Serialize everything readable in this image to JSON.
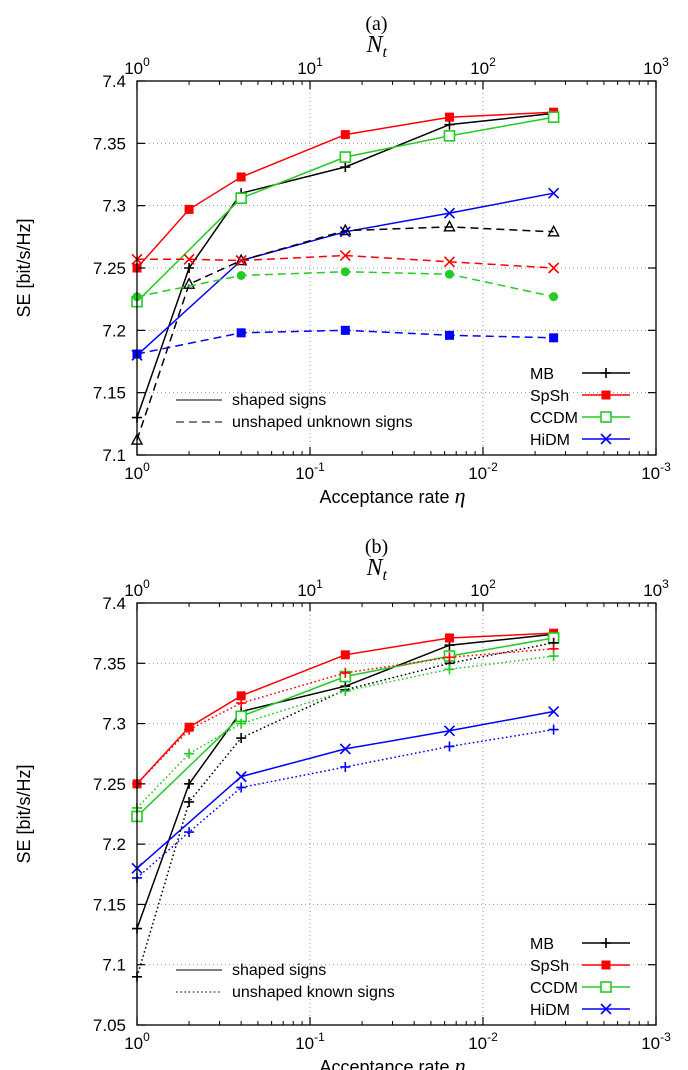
{
  "chart_data": [
    {
      "type": "line",
      "panel_label": "(a)",
      "top_axis_label": "N",
      "top_axis_label_sub": "t",
      "top_axis_ticks": [
        "10^0",
        "10^1",
        "10^2",
        "10^3"
      ],
      "xlabel": "Acceptance rate",
      "xlabel_symbol": "η",
      "ylabel": "SE [bit/s/Hz]",
      "x_scale": "log",
      "x_reversed": true,
      "xlim": [
        1,
        0.001
      ],
      "ylim": [
        7.1,
        7.4
      ],
      "x_ticks": [
        "10^0",
        "10^-1",
        "10^-2",
        "10^-3"
      ],
      "y_ticks": [
        "7.1",
        "7.15",
        "7.2",
        "7.25",
        "7.3",
        "7.35",
        "7.4"
      ],
      "grid": true,
      "legend_placement": "bottom-right",
      "style_legend": [
        {
          "label": "shaped signs",
          "dash": "solid"
        },
        {
          "label": "unshaped unknown signs",
          "dash": "dashed"
        }
      ],
      "series": [
        {
          "name": "MB",
          "color": "#000000",
          "marker": "plus",
          "dash": "solid",
          "x": [
            1,
            0.5,
            0.25,
            0.0625,
            0.015625,
            0.00390625
          ],
          "y": [
            7.13,
            7.25,
            7.31,
            7.331,
            7.365,
            7.374
          ]
        },
        {
          "name": "SpSh",
          "color": "#ff0000",
          "marker": "square-filled",
          "dash": "solid",
          "x": [
            1,
            0.5,
            0.25,
            0.0625,
            0.015625,
            0.00390625
          ],
          "y": [
            7.25,
            7.297,
            7.323,
            7.357,
            7.371,
            7.375
          ]
        },
        {
          "name": "CCDM",
          "color": "#22cc22",
          "marker": "square-open",
          "dash": "solid",
          "x": [
            1,
            0.25,
            0.0625,
            0.015625,
            0.00390625
          ],
          "y": [
            7.223,
            7.306,
            7.339,
            7.356,
            7.371
          ]
        },
        {
          "name": "HiDM",
          "color": "#0000ff",
          "marker": "cross",
          "dash": "solid",
          "x": [
            1,
            0.25,
            0.0625,
            0.015625,
            0.00390625
          ],
          "y": [
            7.18,
            7.256,
            7.279,
            7.294,
            7.31
          ]
        },
        {
          "color": "#000000",
          "marker": "triangle-open",
          "dash": "dashed",
          "x": [
            1,
            0.5,
            0.25,
            0.0625,
            0.015625,
            0.00390625
          ],
          "y": [
            7.112,
            7.237,
            7.256,
            7.28,
            7.283,
            7.279
          ]
        },
        {
          "color": "#ff0000",
          "marker": "cross",
          "dash": "dashed",
          "x": [
            1,
            0.5,
            0.25,
            0.0625,
            0.015625,
            0.00390625
          ],
          "y": [
            7.257,
            7.257,
            7.256,
            7.26,
            7.255,
            7.25
          ]
        },
        {
          "color": "#22cc22",
          "marker": "circle-filled",
          "dash": "dashed",
          "x": [
            1,
            0.25,
            0.0625,
            0.015625,
            0.00390625
          ],
          "y": [
            7.227,
            7.244,
            7.247,
            7.245,
            7.227
          ]
        },
        {
          "color": "#0000ff",
          "marker": "square-filled",
          "dash": "dashed",
          "x": [
            1,
            0.25,
            0.0625,
            0.015625,
            0.00390625
          ],
          "y": [
            7.181,
            7.198,
            7.2,
            7.196,
            7.194
          ]
        }
      ]
    },
    {
      "type": "line",
      "panel_label": "(b)",
      "top_axis_label": "N",
      "top_axis_label_sub": "t",
      "top_axis_ticks": [
        "10^0",
        "10^1",
        "10^2",
        "10^3"
      ],
      "xlabel": "Acceptance rate",
      "xlabel_symbol": "η",
      "ylabel": "SE [bit/s/Hz]",
      "x_scale": "log",
      "x_reversed": true,
      "xlim": [
        1,
        0.001
      ],
      "ylim": [
        7.05,
        7.4
      ],
      "x_ticks": [
        "10^0",
        "10^-1",
        "10^-2",
        "10^-3"
      ],
      "y_ticks": [
        "7.05",
        "7.1",
        "7.15",
        "7.2",
        "7.25",
        "7.3",
        "7.35",
        "7.4"
      ],
      "grid": true,
      "legend_placement": "bottom-right",
      "style_legend": [
        {
          "label": "shaped signs",
          "dash": "solid"
        },
        {
          "label": "unshaped known signs",
          "dash": "dotted"
        }
      ],
      "series": [
        {
          "name": "MB",
          "color": "#000000",
          "marker": "plus",
          "dash": "solid",
          "x": [
            1,
            0.5,
            0.25,
            0.0625,
            0.015625,
            0.00390625
          ],
          "y": [
            7.13,
            7.25,
            7.31,
            7.331,
            7.365,
            7.374
          ]
        },
        {
          "name": "SpSh",
          "color": "#ff0000",
          "marker": "square-filled",
          "dash": "solid",
          "x": [
            1,
            0.5,
            0.25,
            0.0625,
            0.015625,
            0.00390625
          ],
          "y": [
            7.25,
            7.297,
            7.323,
            7.357,
            7.371,
            7.375
          ]
        },
        {
          "name": "CCDM",
          "color": "#22cc22",
          "marker": "square-open",
          "dash": "solid",
          "x": [
            1,
            0.25,
            0.0625,
            0.015625,
            0.00390625
          ],
          "y": [
            7.223,
            7.306,
            7.339,
            7.356,
            7.371
          ]
        },
        {
          "name": "HiDM",
          "color": "#0000ff",
          "marker": "cross",
          "dash": "solid",
          "x": [
            1,
            0.25,
            0.0625,
            0.015625,
            0.00390625
          ],
          "y": [
            7.18,
            7.256,
            7.279,
            7.294,
            7.31
          ]
        },
        {
          "color": "#000000",
          "marker": "plus",
          "dash": "dotted",
          "x": [
            1,
            0.5,
            0.25,
            0.0625,
            0.015625,
            0.00390625
          ],
          "y": [
            7.09,
            7.235,
            7.288,
            7.328,
            7.35,
            7.367
          ]
        },
        {
          "color": "#ff0000",
          "marker": "plus",
          "dash": "dotted",
          "x": [
            1,
            0.5,
            0.25,
            0.0625,
            0.015625,
            0.00390625
          ],
          "y": [
            7.25,
            7.295,
            7.317,
            7.342,
            7.355,
            7.362
          ]
        },
        {
          "color": "#22cc22",
          "marker": "plus",
          "dash": "dotted",
          "x": [
            1,
            0.5,
            0.25,
            0.0625,
            0.015625,
            0.00390625
          ],
          "y": [
            7.23,
            7.275,
            7.3,
            7.327,
            7.345,
            7.356
          ]
        },
        {
          "color": "#0000ff",
          "marker": "plus",
          "dash": "dotted",
          "x": [
            1,
            0.5,
            0.25,
            0.0625,
            0.015625,
            0.00390625
          ],
          "y": [
            7.172,
            7.21,
            7.247,
            7.264,
            7.281,
            7.295
          ]
        }
      ]
    }
  ]
}
